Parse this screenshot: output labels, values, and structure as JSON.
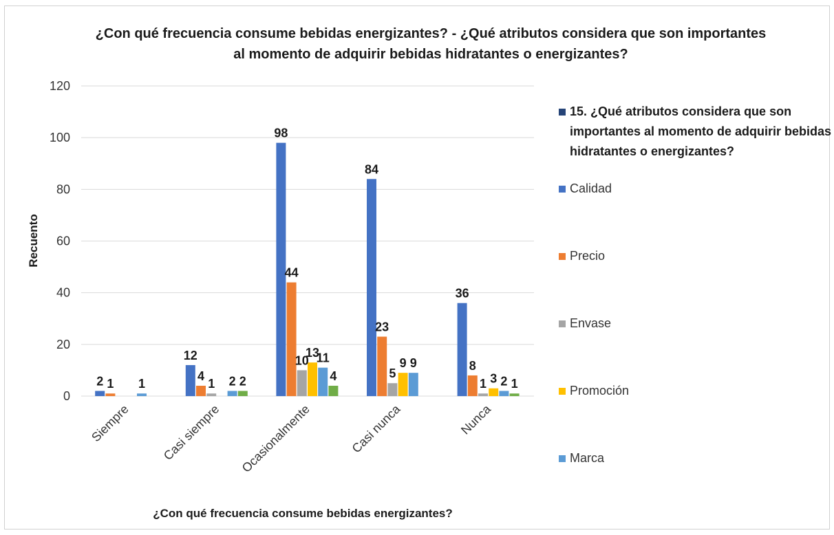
{
  "chart_data": {
    "type": "bar",
    "title": "¿Con qué frecuencia consume bebidas energizantes? -  ¿Qué atributos considera que son importantes\nal momento de adquirir bebidas hidratantes o energizantes?",
    "xlabel": "¿Con qué frecuencia consume bebidas energizantes?",
    "ylabel": "Recuento",
    "ylim": [
      0,
      120
    ],
    "yticks": [
      0,
      20,
      40,
      60,
      80,
      100,
      120
    ],
    "grid": true,
    "legend_position": "right",
    "legend_title": "15.  ¿Qué atributos considera que son importantes al momento de adquirir bebidas hidratantes o energizantes?",
    "legend_title_color": "#264478",
    "categories": [
      "Siempre",
      "Casi siempre",
      "Ocasionalmente",
      "Casi nunca",
      "Nunca"
    ],
    "series": [
      {
        "name": "Calidad",
        "color": "#4472c4",
        "values": [
          2,
          12,
          98,
          84,
          36
        ]
      },
      {
        "name": "Precio",
        "color": "#ed7d31",
        "values": [
          1,
          4,
          44,
          23,
          8
        ]
      },
      {
        "name": "Envase",
        "color": "#a5a5a5",
        "values": [
          0,
          1,
          10,
          5,
          1
        ]
      },
      {
        "name": "Promoción",
        "color": "#ffc000",
        "values": [
          0,
          0,
          13,
          9,
          3
        ]
      },
      {
        "name": "Marca",
        "color": "#5b9bd5",
        "values": [
          1,
          2,
          11,
          9,
          2
        ]
      },
      {
        "name": "",
        "color": "#70ad47",
        "values": [
          0,
          2,
          4,
          0,
          1
        ]
      }
    ]
  }
}
